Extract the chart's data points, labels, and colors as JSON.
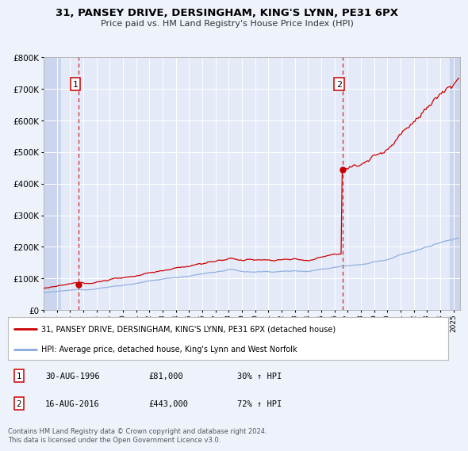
{
  "title": "31, PANSEY DRIVE, DERSINGHAM, KING'S LYNN, PE31 6PX",
  "subtitle": "Price paid vs. HM Land Registry's House Price Index (HPI)",
  "red_label": "31, PANSEY DRIVE, DERSINGHAM, KING'S LYNN, PE31 6PX (detached house)",
  "blue_label": "HPI: Average price, detached house, King's Lynn and West Norfolk",
  "purchase1_date": "30-AUG-1996",
  "purchase1_price": 81000,
  "purchase1_hpi": "30% ↑ HPI",
  "purchase2_date": "16-AUG-2016",
  "purchase2_price": 443000,
  "purchase2_hpi": "72% ↑ HPI",
  "purchase1_x": 1996.66,
  "purchase2_x": 2016.62,
  "footer": "Contains HM Land Registry data © Crown copyright and database right 2024.\nThis data is licensed under the Open Government Licence v3.0.",
  "bg_color": "#eef2fb",
  "plot_bg_color": "#e4eaf8",
  "grid_color": "#ffffff",
  "red_color": "#cc0000",
  "blue_color": "#88aadd",
  "xlim": [
    1994.0,
    2025.5
  ],
  "ylim": [
    0,
    800000
  ],
  "yticks": [
    0,
    100000,
    200000,
    300000,
    400000,
    500000,
    600000,
    700000,
    800000
  ]
}
